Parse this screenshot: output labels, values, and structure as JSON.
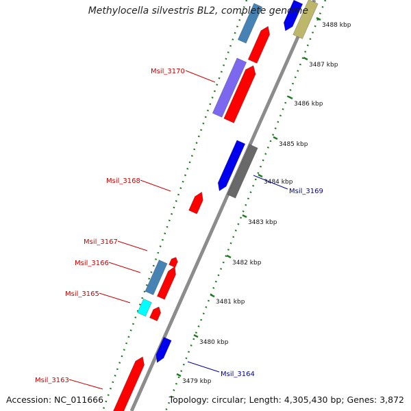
{
  "title": "Methylocella silvestris BL2, complete genome",
  "footer": {
    "accession": "Accession: NC_011666",
    "summary": "Topology: circular; Length: 4,305,430 bp; Genes: 3,872"
  },
  "colors": {
    "axis": "#8c8c8c",
    "tick": "#1e7a1e",
    "label_left": "#cc0000",
    "label_right": "#00009a",
    "gene_red": "#ff0000",
    "gene_blue": "#0000ee",
    "gene_steel": "#4682b4",
    "gene_purple": "#7b68ee",
    "gene_gray": "#696969",
    "gene_tan": "#bdb76b",
    "gene_cyan": "#00ffff"
  },
  "scale": {
    "ticks": [
      {
        "label": "3479 kbp"
      },
      {
        "label": "3480 kbp"
      },
      {
        "label": "3481 kbp"
      },
      {
        "label": "3482 kbp"
      },
      {
        "label": "3483 kbp"
      },
      {
        "label": "3484 kbp"
      },
      {
        "label": "3485 kbp"
      },
      {
        "label": "3486 kbp"
      },
      {
        "label": "3487 kbp"
      },
      {
        "label": "3488 kbp"
      }
    ]
  },
  "gene_labels": [
    {
      "text": "Msil_3170",
      "side": "left"
    },
    {
      "text": "Msil_3168",
      "side": "left"
    },
    {
      "text": "Msil_3169",
      "side": "right"
    },
    {
      "text": "Msil_3167",
      "side": "left"
    },
    {
      "text": "Msil_3166",
      "side": "left"
    },
    {
      "text": "Msil_3165",
      "side": "left"
    },
    {
      "text": "Msil_3164",
      "side": "right"
    },
    {
      "text": "Msil_3163",
      "side": "left"
    }
  ]
}
